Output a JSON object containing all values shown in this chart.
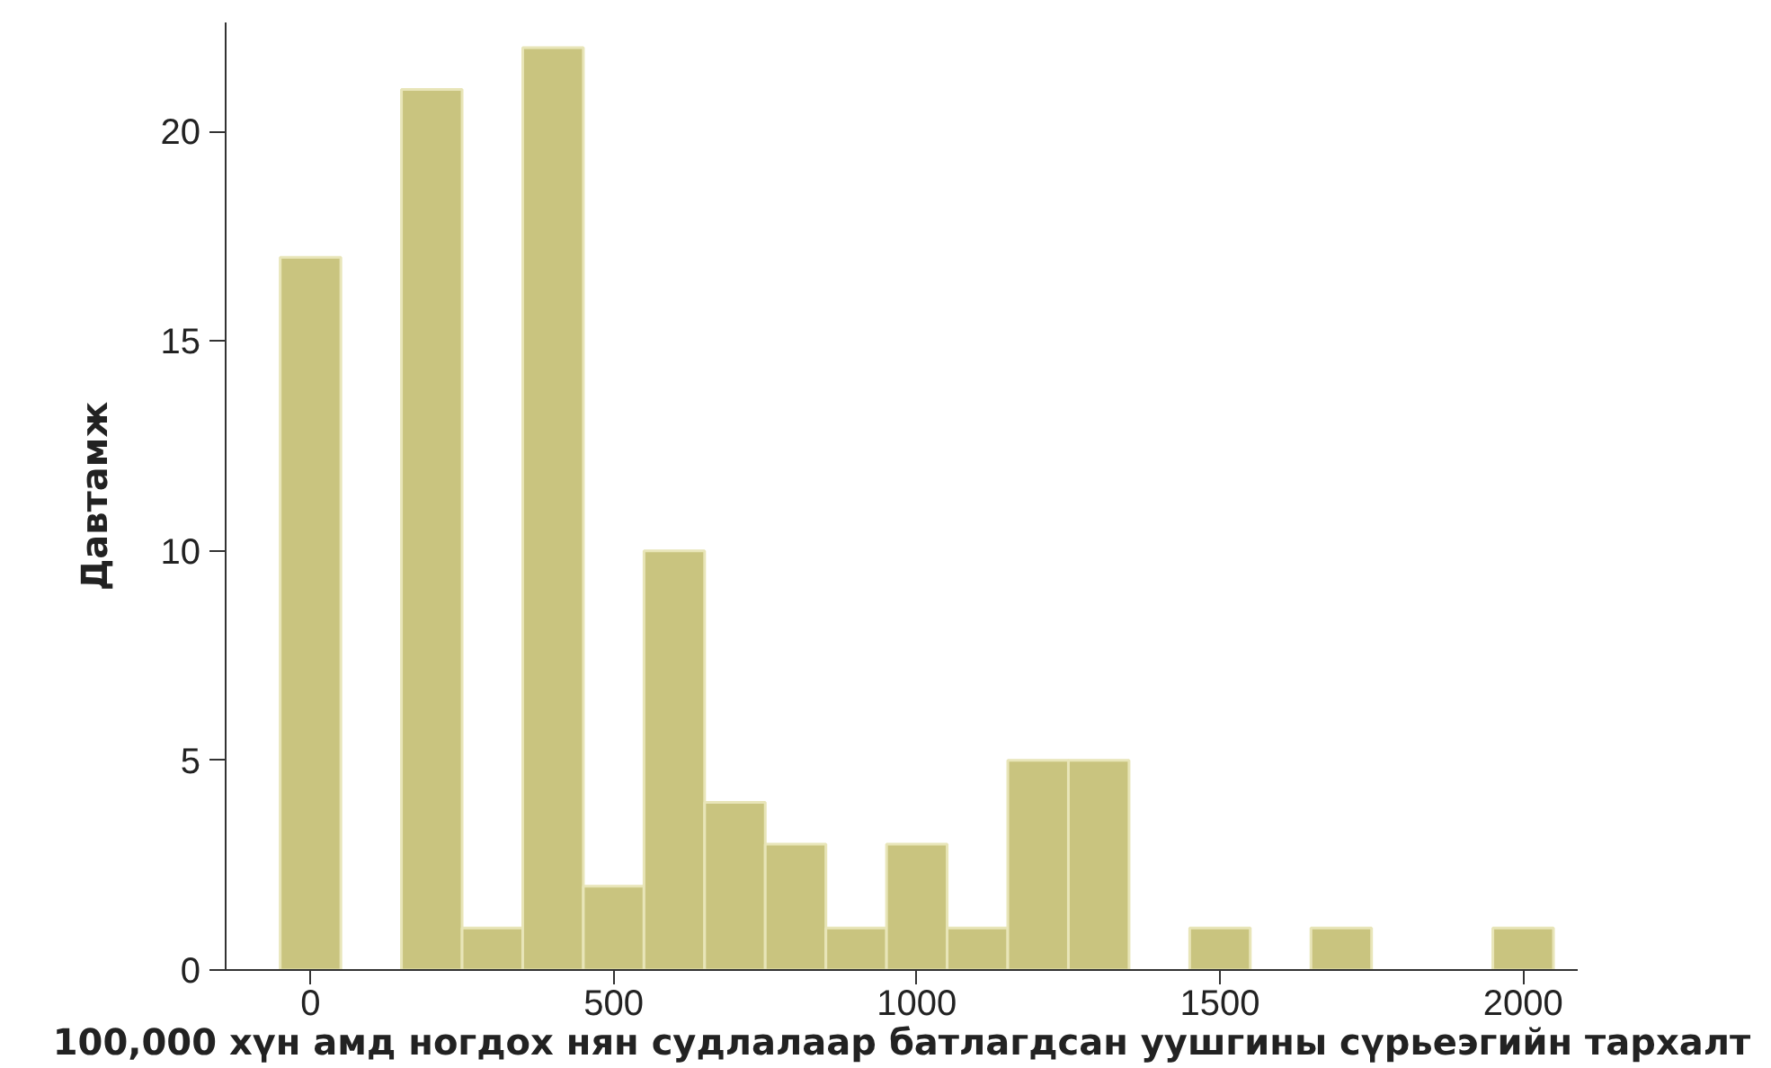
{
  "chart_data": {
    "type": "histogram",
    "xlabel": "100,000 хүн амд ногдох нян судлалаар батлагдсан уушгины сүрьеэгийн тархалт",
    "ylabel": "Давтамж",
    "bins": [
      -50,
      50,
      150,
      250,
      350,
      450,
      550,
      650,
      750,
      850,
      950,
      1050,
      1150,
      1250,
      1350,
      1450,
      1550,
      1650,
      1750,
      1850,
      1950,
      2050
    ],
    "values": [
      17,
      0,
      21,
      1,
      22,
      2,
      10,
      4,
      3,
      1,
      3,
      1,
      5,
      5,
      0,
      1,
      0,
      1,
      0,
      0,
      1
    ],
    "color": "#c9c47f",
    "xlim": [
      -140,
      2090
    ],
    "ylim": [
      0,
      22.6
    ],
    "xticks": [
      0,
      500,
      1000,
      1500,
      2000
    ],
    "yticks": [
      0,
      5,
      10,
      15,
      20
    ],
    "grid": false
  }
}
